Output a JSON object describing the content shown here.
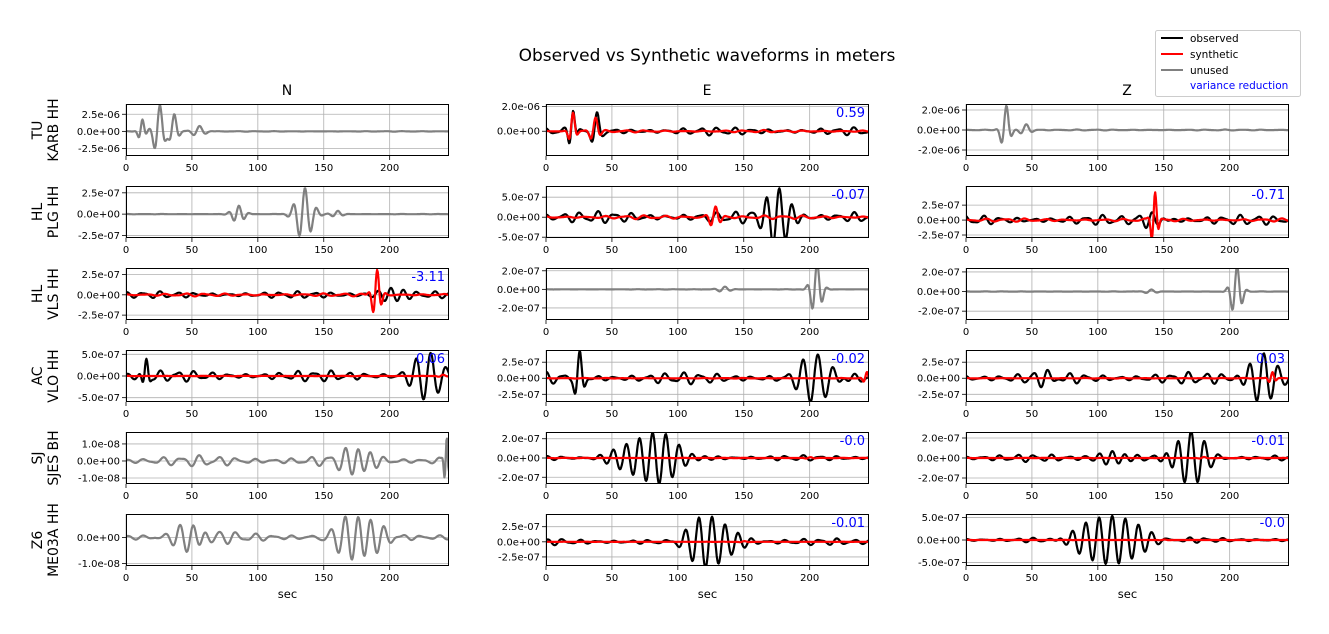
{
  "figure": {
    "title": "Observed vs Synthetic waveforms in meters",
    "legend": {
      "placement": "top-right",
      "items": [
        {
          "label": "observed",
          "color": "#000000"
        },
        {
          "label": "synthetic",
          "color": "#ff0000"
        },
        {
          "label": "unused",
          "color": "#808080"
        },
        {
          "label": "variance reduction",
          "color": "#0000ff",
          "text_only": true
        }
      ]
    },
    "x_axis": {
      "label": "sec",
      "ticks": [
        0,
        50,
        100,
        150,
        200
      ],
      "range": [
        0,
        245
      ]
    },
    "grid": true
  },
  "chart_data": {
    "type": "line",
    "components": [
      "N",
      "E",
      "Z"
    ],
    "stations": [
      "TU\nKARB HH",
      "HL\nPLG HH",
      "HL\nVLS HH",
      "AC\nVLO HH",
      "SJ\nSJES BH",
      "Z6\nME03A HH"
    ],
    "panels": [
      [
        {
          "status": "unused",
          "ylim": [
            -3.6e-06,
            4e-06
          ],
          "yticks": [
            2.5e-06,
            0,
            -2.5e-06
          ],
          "ytick_labels": [
            "2.5e-06",
            "0.0e+00",
            "-2.5e-06"
          ],
          "vr": null,
          "obs": {
            "amp": 4e-06,
            "bursts": [
              [
                12,
                1.8e-06,
                7,
                3
              ],
              [
                25,
                3.9e-06,
                9,
                5
              ],
              [
                36,
                2.6e-06,
                9,
                4
              ],
              [
                55,
                8e-07,
                10,
                6
              ]
            ],
            "noise": 4e-08,
            "seed": 11
          }
        },
        {
          "status": "used",
          "ylim": [
            -2e-06,
            2.2e-06
          ],
          "yticks": [
            2e-06,
            0
          ],
          "ytick_labels": [
            "2.0e-06",
            "0.0e+00"
          ],
          "vr": "0.59",
          "obs": {
            "bursts": [
              [
                20,
                2e-06,
                8,
                3
              ],
              [
                38,
                1.3e-06,
                9,
                4
              ]
            ],
            "noise": 3.5e-07,
            "seed": 12
          },
          "syn": {
            "bursts": [
              [
                20,
                1.6e-06,
                8,
                3
              ],
              [
                37,
                1.2e-06,
                9,
                4
              ]
            ],
            "noise": 1e-07,
            "seed": 13
          }
        },
        {
          "status": "unused",
          "ylim": [
            -2.6e-06,
            2.6e-06
          ],
          "yticks": [
            2e-06,
            0,
            -2e-06
          ],
          "ytick_labels": [
            "2.0e-06",
            "0.0e+00",
            "-2.0e-06"
          ],
          "vr": null,
          "obs": {
            "bursts": [
              [
                30,
                2.5e-06,
                9,
                4
              ],
              [
                45,
                6e-07,
                10,
                5
              ]
            ],
            "noise": 5e-08,
            "seed": 14
          }
        }
      ],
      [
        {
          "status": "unused",
          "ylim": [
            -2.8e-07,
            3.3e-07
          ],
          "yticks": [
            2.5e-07,
            0,
            -2.5e-07
          ],
          "ytick_labels": [
            "2.5e-07",
            "0.0e+00",
            "-2.5e-07"
          ],
          "vr": null,
          "obs": {
            "bursts": [
              [
                85,
                1e-07,
                8,
                6
              ],
              [
                135,
                3.1e-07,
                9,
                8
              ],
              [
                160,
                4e-08,
                9,
                5
              ]
            ],
            "noise": 2e-09,
            "seed": 21
          }
        },
        {
          "status": "used",
          "ylim": [
            -5.2e-07,
            7.8e-07
          ],
          "yticks": [
            5e-07,
            0,
            -5e-07
          ],
          "ytick_labels": [
            "5.0e-07",
            "0.0e+00",
            "-5.0e-07"
          ],
          "vr": "-0.07",
          "obs": {
            "bursts": [
              [
                176,
                7.5e-07,
                10,
                12
              ]
            ],
            "noise": 1.6e-07,
            "seed": 22
          },
          "syn": {
            "bursts": [
              [
                128,
                2.8e-07,
                8,
                5
              ]
            ],
            "noise": 5e-08,
            "seed": 23
          }
        },
        {
          "status": "used",
          "ylim": [
            -3e-07,
            5.7e-07
          ],
          "yticks": [
            2.5e-07,
            0,
            -2.5e-07
          ],
          "ytick_labels": [
            "2.5e-07",
            "0.0e+00",
            "-2.5e-07"
          ],
          "vr": "-0.71",
          "obs": {
            "bursts": [
              [
                140,
                1.2e-07,
                9,
                10
              ]
            ],
            "noise": 9e-08,
            "seed": 24
          },
          "syn": {
            "bursts": [
              [
                143,
                5e-07,
                6,
                3
              ]
            ],
            "noise": 3e-08,
            "seed": 25
          }
        }
      ],
      [
        {
          "status": "used",
          "ylim": [
            -3.1e-07,
            3.3e-07
          ],
          "yticks": [
            2.5e-07,
            0,
            -2.5e-07
          ],
          "ytick_labels": [
            "2.5e-07",
            "0.0e+00",
            "-2.5e-07"
          ],
          "vr": "-3.11",
          "obs": {
            "bursts": [
              [
                200,
                1e-07,
                10,
                12
              ]
            ],
            "noise": 4.5e-08,
            "seed": 31
          },
          "syn": {
            "bursts": [
              [
                190,
                3.2e-07,
                7,
                4
              ]
            ],
            "noise": 2e-08,
            "seed": 32
          }
        },
        {
          "status": "unused",
          "ylim": [
            -3.3e-07,
            2.3e-07
          ],
          "yticks": [
            2e-07,
            0,
            -2e-07
          ],
          "ytick_labels": [
            "2.0e-07",
            "0.0e+00",
            "-2.0e-07"
          ],
          "vr": null,
          "obs": {
            "bursts": [
              [
                205,
                3e-07,
                8,
                5
              ],
              [
                135,
                3e-08,
                9,
                6
              ]
            ],
            "noise": 2e-09,
            "seed": 33
          }
        },
        {
          "status": "unused",
          "ylim": [
            -2.9e-07,
            2.4e-07
          ],
          "yticks": [
            2e-07,
            0,
            -2e-07
          ],
          "ytick_labels": [
            "2.0e-07",
            "0.0e+00",
            "-2.0e-07"
          ],
          "vr": null,
          "obs": {
            "bursts": [
              [
                205,
                2.7e-07,
                8,
                5
              ],
              [
                140,
                2e-08,
                9,
                6
              ]
            ],
            "noise": 2e-09,
            "seed": 34
          }
        }
      ],
      [
        {
          "status": "used",
          "ylim": [
            -6e-07,
            6e-07
          ],
          "yticks": [
            5e-07,
            0,
            -5e-07
          ],
          "ytick_labels": [
            "5.0e-07",
            "0.0e+00",
            "-5.0e-07"
          ],
          "vr": "0.06",
          "obs": {
            "bursts": [
              [
                230,
                5.5e-07,
                11,
                14
              ],
              [
                15,
                4e-07,
                7,
                3
              ]
            ],
            "noise": 1.4e-07,
            "seed": 41
          },
          "syn": {
            "bursts": [
              [
                240,
                3e-08,
                8,
                4
              ]
            ],
            "noise": 5e-09,
            "seed": 42
          }
        },
        {
          "status": "used",
          "ylim": [
            -3.7e-07,
            4.4e-07
          ],
          "yticks": [
            2.5e-07,
            0,
            -2.5e-07
          ],
          "ytick_labels": [
            "2.5e-07",
            "0.0e+00",
            "-2.5e-07"
          ],
          "vr": "-0.02",
          "obs": {
            "bursts": [
              [
                25,
                3.8e-07,
                8,
                4
              ],
              [
                205,
                3.6e-07,
                11,
                14
              ]
            ],
            "noise": 1e-07,
            "seed": 43
          },
          "syn": {
            "bursts": [
              [
                243,
                1e-07,
                6,
                3
              ]
            ],
            "noise": 5e-09,
            "seed": 44
          }
        },
        {
          "status": "used",
          "ylim": [
            -3.7e-07,
            4.4e-07
          ],
          "yticks": [
            2.5e-07,
            0,
            -2.5e-07
          ],
          "ytick_labels": [
            "2.5e-07",
            "0.0e+00",
            "-2.5e-07"
          ],
          "vr": "0.03",
          "obs": {
            "bursts": [
              [
                225,
                4e-07,
                11,
                14
              ],
              [
                60,
                1.5e-07,
                10,
                8
              ]
            ],
            "noise": 1e-07,
            "seed": 45
          },
          "syn": {
            "bursts": [
              [
                232,
                1e-07,
                6,
                3
              ]
            ],
            "noise": 5e-09,
            "seed": 46
          }
        }
      ],
      [
        {
          "status": "unused",
          "ylim": [
            -1.35e-08,
            1.7e-08
          ],
          "yticks": [
            1e-08,
            0,
            -1e-08
          ],
          "ytick_labels": [
            "1.0e-08",
            "0.0e+00",
            "-1.0e-08"
          ],
          "vr": null,
          "obs": {
            "bursts": [
              [
                175,
                8e-09,
                10,
                14
              ],
              [
                243,
                1.6e-08,
                4,
                2
              ]
            ],
            "noise": 3.5e-09,
            "seed": 51
          }
        },
        {
          "status": "used",
          "ylim": [
            -2.7e-07,
            2.7e-07
          ],
          "yticks": [
            2e-07,
            0,
            -2e-07
          ],
          "ytick_labels": [
            "2.0e-07",
            "0.0e+00",
            "-2.0e-07"
          ],
          "vr": "-0.0",
          "obs": {
            "bursts": [
              [
                80,
                2.6e-07,
                10,
                26
              ]
            ],
            "noise": 3e-08,
            "seed": 52
          },
          "syn": {
            "bursts": [
              [
                200,
                1e-08,
                8,
                4
              ]
            ],
            "noise": 2e-09,
            "seed": 53
          }
        },
        {
          "status": "used",
          "ylim": [
            -2.6e-07,
            2.6e-07
          ],
          "yticks": [
            2e-07,
            0,
            -2e-07
          ],
          "ytick_labels": [
            "2.0e-07",
            "0.0e+00",
            "-2.0e-07"
          ],
          "vr": "-0.01",
          "obs": {
            "bursts": [
              [
                170,
                2.5e-07,
                10,
                16
              ],
              [
                110,
                8e-08,
                10,
                12
              ]
            ],
            "noise": 4e-08,
            "seed": 54
          },
          "syn": {
            "bursts": [
              [
                180,
                1e-08,
                8,
                4
              ]
            ],
            "noise": 2e-09,
            "seed": 55
          }
        }
      ],
      [
        {
          "status": "unused",
          "ylim": [
            -1.1e-08,
            9e-09
          ],
          "yticks": [
            0,
            -1e-08
          ],
          "ytick_labels": [
            "0.0e+00",
            "-1.0e-08"
          ],
          "vr": null,
          "obs": {
            "bursts": [
              [
                175,
                9e-09,
                10,
                18
              ],
              [
                50,
                6e-09,
                10,
                14
              ]
            ],
            "noise": 2.5e-09,
            "seed": 61
          }
        },
        {
          "status": "used",
          "ylim": [
            -4e-07,
            4.6e-07
          ],
          "yticks": [
            2.5e-07,
            0,
            -2.5e-07
          ],
          "ytick_labels": [
            "2.5e-07",
            "0.0e+00",
            "-2.5e-07"
          ],
          "vr": "-0.01",
          "obs": {
            "bursts": [
              [
                125,
                4.3e-07,
                10,
                20
              ]
            ],
            "noise": 6e-08,
            "seed": 62
          },
          "syn": {
            "bursts": [
              [
                150,
                1e-08,
                8,
                4
              ]
            ],
            "noise": 2e-09,
            "seed": 63
          }
        },
        {
          "status": "used",
          "ylim": [
            -5.8e-07,
            5.8e-07
          ],
          "yticks": [
            5e-07,
            0,
            -5e-07
          ],
          "ytick_labels": [
            "5.0e-07",
            "0.0e+00",
            "-5.0e-07"
          ],
          "vr": "-0.0",
          "obs": {
            "bursts": [
              [
                110,
                5.6e-07,
                10,
                28
              ]
            ],
            "noise": 6e-08,
            "seed": 64
          },
          "syn": {
            "bursts": [
              [
                150,
                1e-08,
                8,
                4
              ]
            ],
            "noise": 2e-09,
            "seed": 65
          }
        }
      ]
    ]
  }
}
